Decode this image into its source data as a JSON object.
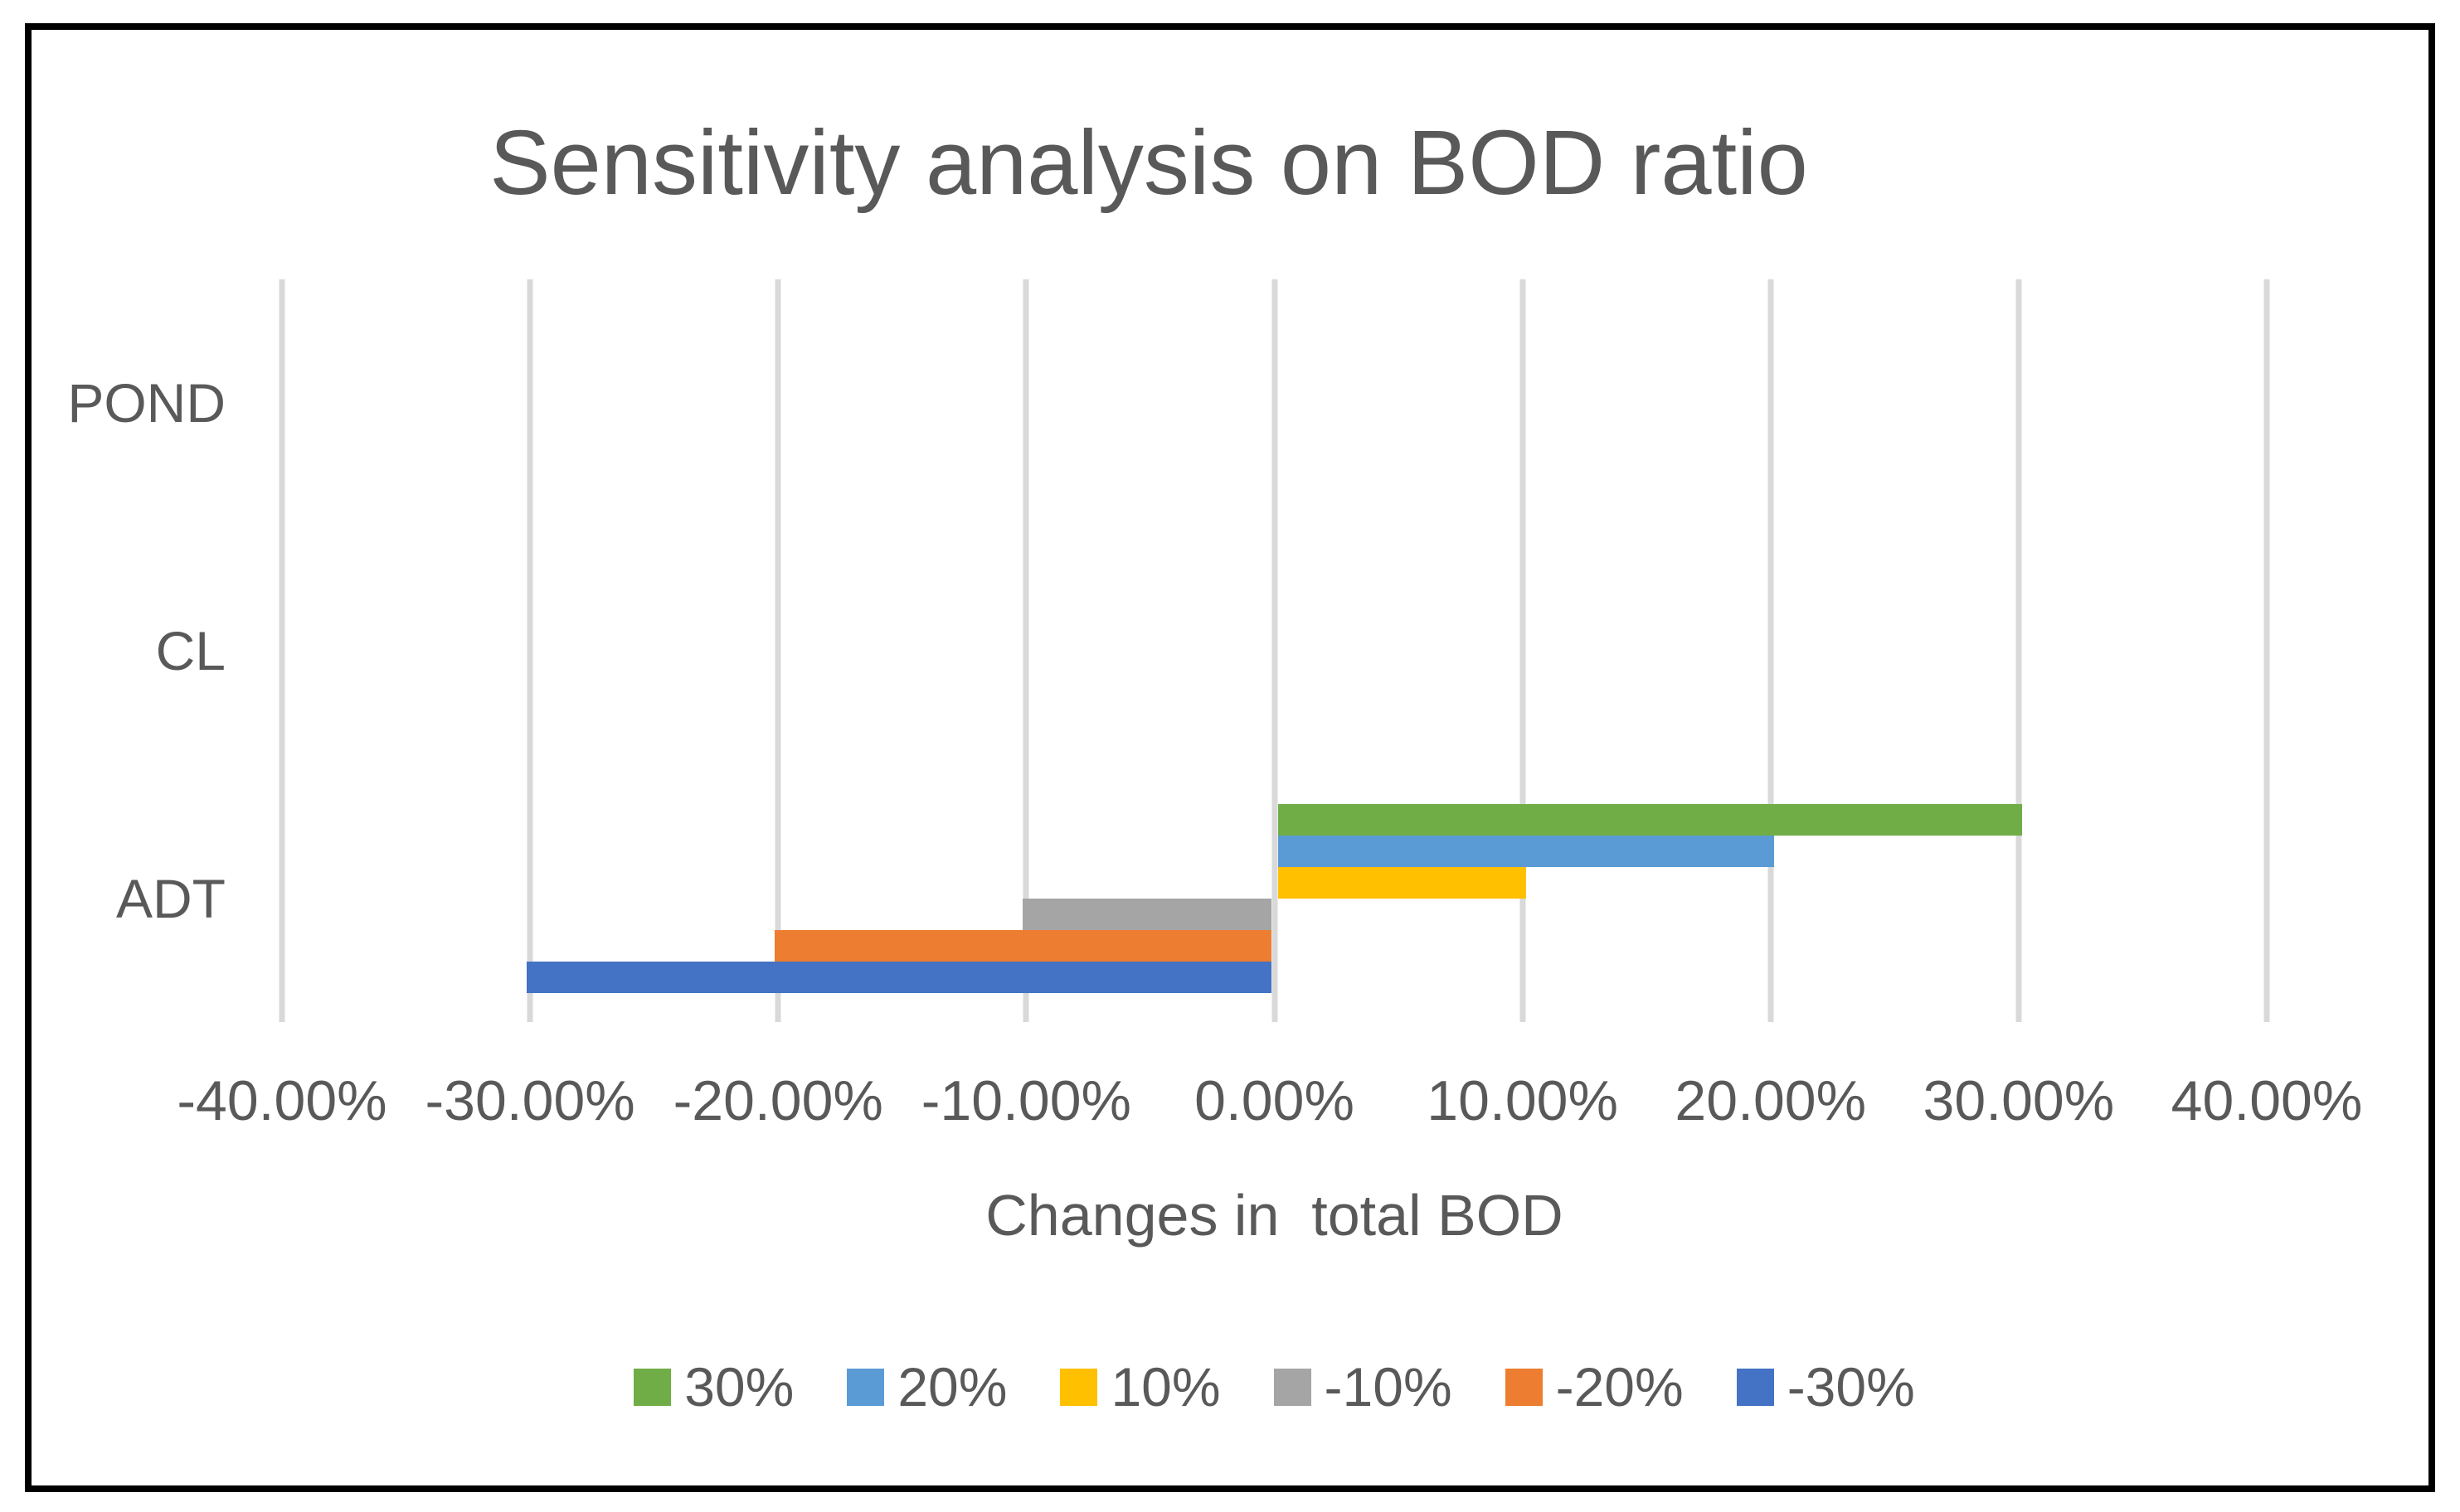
{
  "chart_data": {
    "type": "bar",
    "orientation": "horizontal",
    "title": "Sensitivity analysis on BOD ratio",
    "xlabel": "Changes in  total BOD",
    "ylabel": "",
    "categories": [
      "POND",
      "CL",
      "ADT"
    ],
    "series": [
      {
        "name": "30%",
        "color": "#70AD47",
        "values": [
          0,
          0,
          30
        ]
      },
      {
        "name": "20%",
        "color": "#5B9BD5",
        "values": [
          0,
          0,
          20
        ]
      },
      {
        "name": "10%",
        "color": "#FFC000",
        "values": [
          0,
          0,
          10
        ]
      },
      {
        "name": "-10%",
        "color": "#A5A5A5",
        "values": [
          0,
          0,
          -10
        ]
      },
      {
        "name": "-20%",
        "color": "#ED7D31",
        "values": [
          0,
          0,
          -20
        ]
      },
      {
        "name": "-30%",
        "color": "#4472C4",
        "values": [
          0,
          0,
          -30
        ]
      }
    ],
    "xlim": [
      -40,
      40
    ],
    "xtick_labels": [
      "-40.00%",
      "-30.00%",
      "-20.00%",
      "-10.00%",
      "0.00%",
      "10.00%",
      "20.00%",
      "30.00%",
      "40.00%"
    ],
    "grid": "vertical",
    "legend_position": "bottom"
  },
  "style": {
    "text_color": "#595959",
    "grid_color": "#D9D9D9",
    "frame_border_color": "#000000",
    "background_color": "#FFFFFF"
  }
}
